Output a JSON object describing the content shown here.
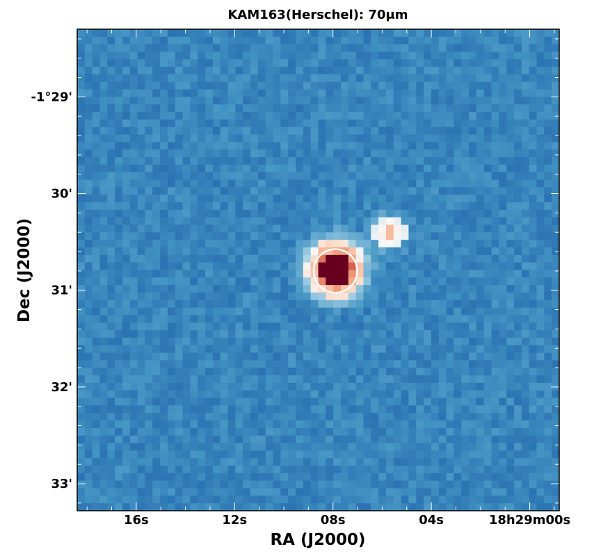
{
  "chart_data": {
    "type": "heatmap",
    "title": "KAM163(Herschel): 70μm",
    "xlabel": "RA (J2000)",
    "ylabel": "Dec (J2000)",
    "x_ticks": [
      "16s",
      "12s",
      "08s",
      "04s",
      "18h29m00s"
    ],
    "y_ticks": [
      "-1°29'",
      "30'",
      "31'",
      "32'",
      "33'"
    ],
    "x_tick_seconds": [
      16,
      12,
      8,
      4,
      0
    ],
    "y_tick_arcmin": [
      29,
      30,
      31,
      32,
      33
    ],
    "x_range_seconds": [
      18.4,
      -1.2
    ],
    "y_range_arcmin": [
      28.3,
      33.28
    ],
    "colormap": "RdBu_r",
    "background_color": "#2f73b0",
    "marker": {
      "shape": "circle",
      "color": "#ffffff",
      "ra_seconds": 7.9,
      "dec_arcmin": 30.8,
      "radius_arcmin": 0.225
    },
    "sources": [
      {
        "ra_seconds": 7.9,
        "dec_arcmin": 30.78,
        "peak": "saturated"
      },
      {
        "ra_seconds": 5.7,
        "dec_arcmin": 30.4,
        "peak": "bright"
      }
    ],
    "grid": false
  }
}
